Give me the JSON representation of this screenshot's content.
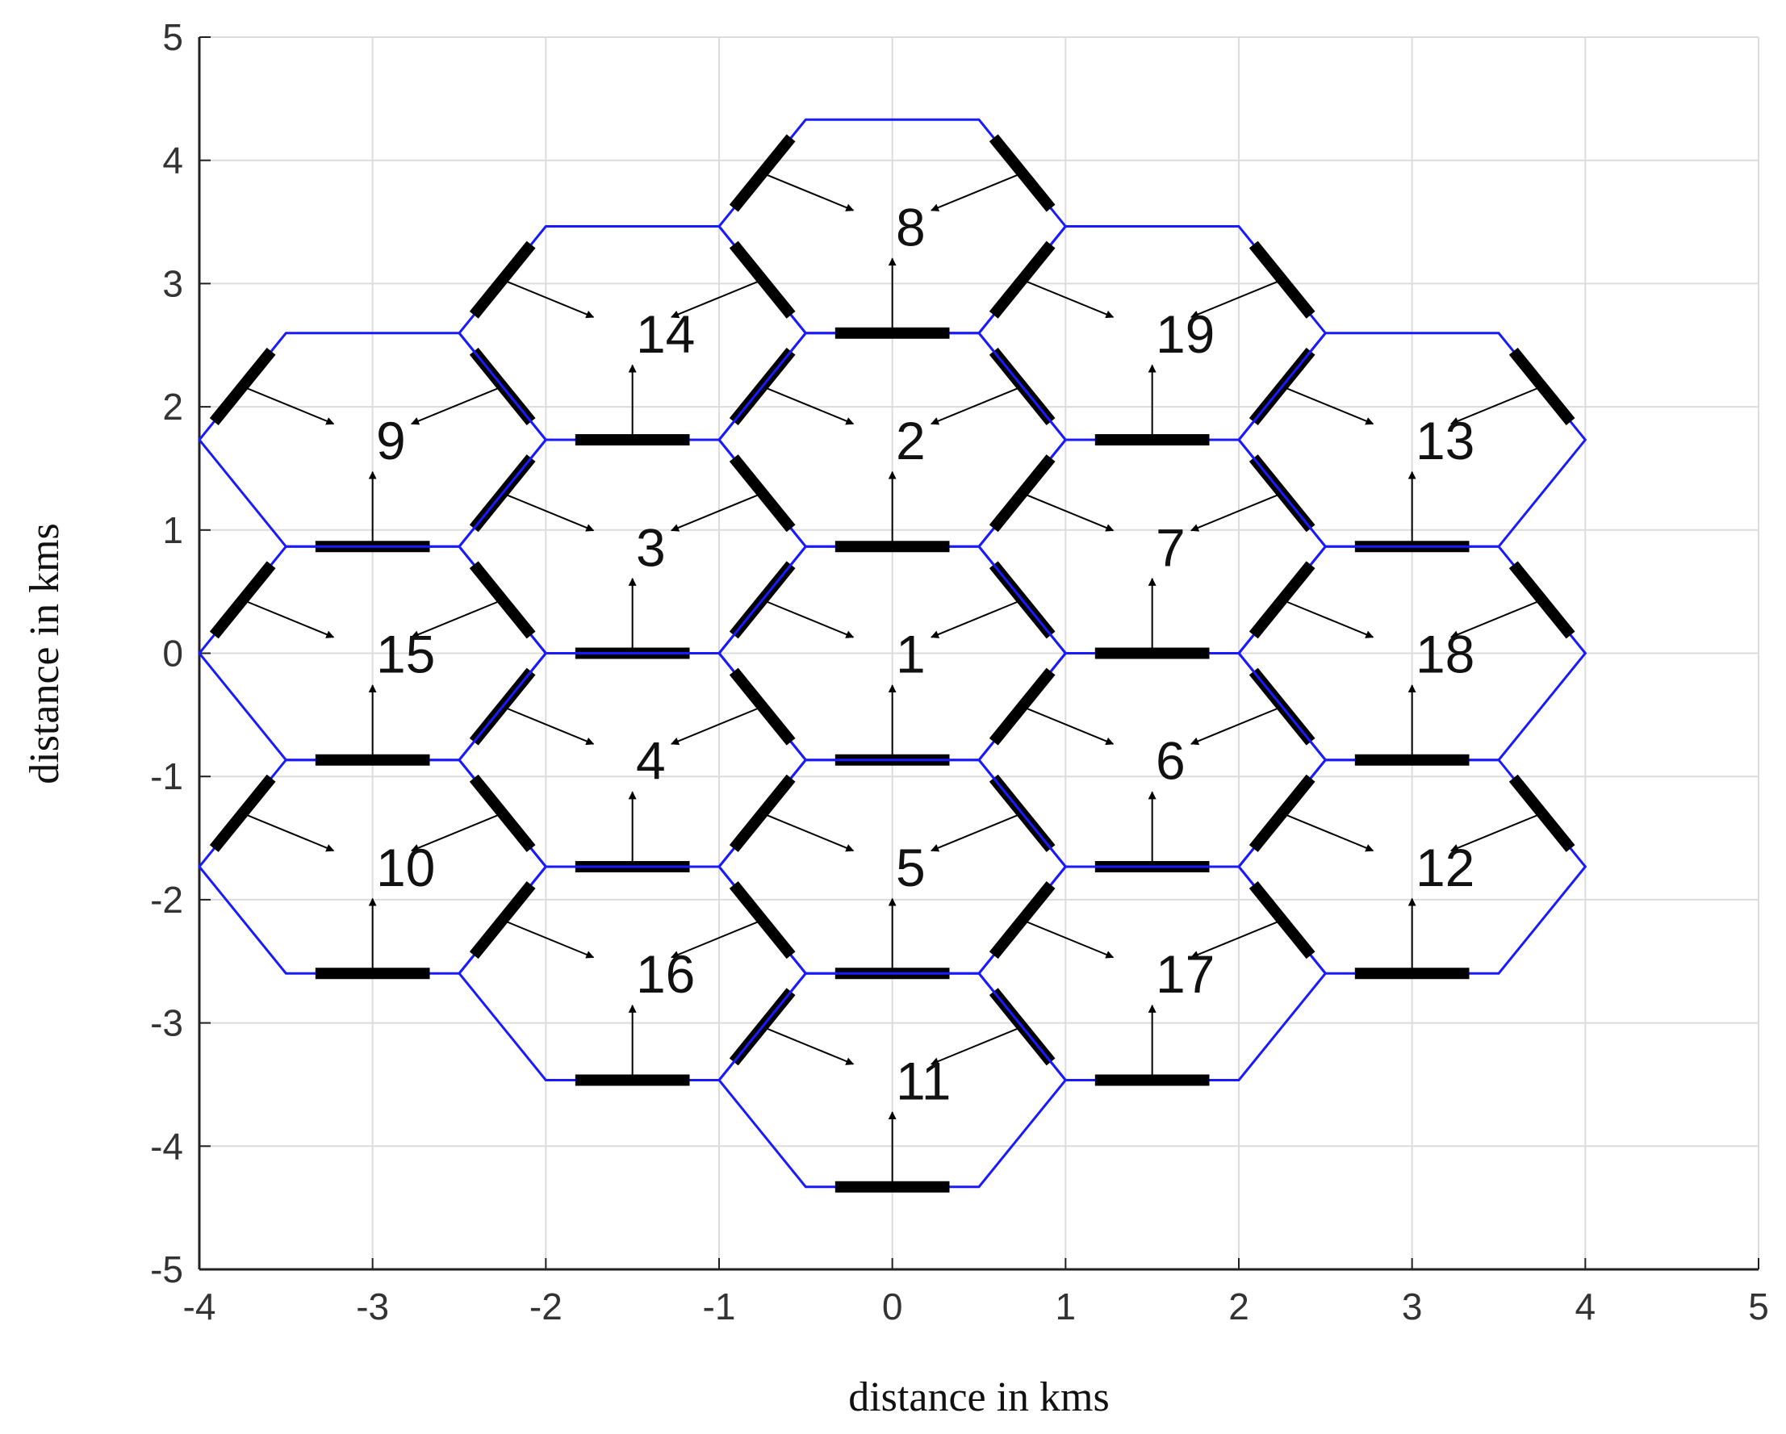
{
  "chart_data": {
    "type": "hex-cells",
    "xlabel": "distance in kms",
    "ylabel": "distance in kms",
    "xlim": [
      -4,
      5
    ],
    "ylim": [
      -5,
      5
    ],
    "xticks": [
      -4,
      -3,
      -2,
      -1,
      0,
      1,
      2,
      3,
      4,
      5
    ],
    "yticks": [
      -5,
      -4,
      -3,
      -2,
      -1,
      0,
      1,
      2,
      3,
      4,
      5
    ],
    "grid": true,
    "hex_radius": 1,
    "edge_color": "#1a1aff",
    "sector_color": "#000000",
    "cells": {
      "labels": [
        "1",
        "2",
        "3",
        "4",
        "5",
        "6",
        "7",
        "8",
        "9",
        "10",
        "11",
        "12",
        "13",
        "14",
        "15",
        "16",
        "17",
        "18",
        "19"
      ],
      "x": [
        0,
        0,
        -1.5,
        -1.5,
        0,
        1.5,
        1.5,
        0,
        -3,
        -3,
        0,
        3,
        3,
        -1.5,
        -3,
        -1.5,
        1.5,
        3,
        1.5
      ],
      "y": [
        0,
        1.732,
        0.866,
        -0.866,
        -1.732,
        -0.866,
        0.866,
        3.464,
        1.732,
        -1.732,
        -3.464,
        -1.732,
        1.732,
        2.598,
        0,
        -2.598,
        -2.598,
        0,
        2.598
      ]
    }
  }
}
